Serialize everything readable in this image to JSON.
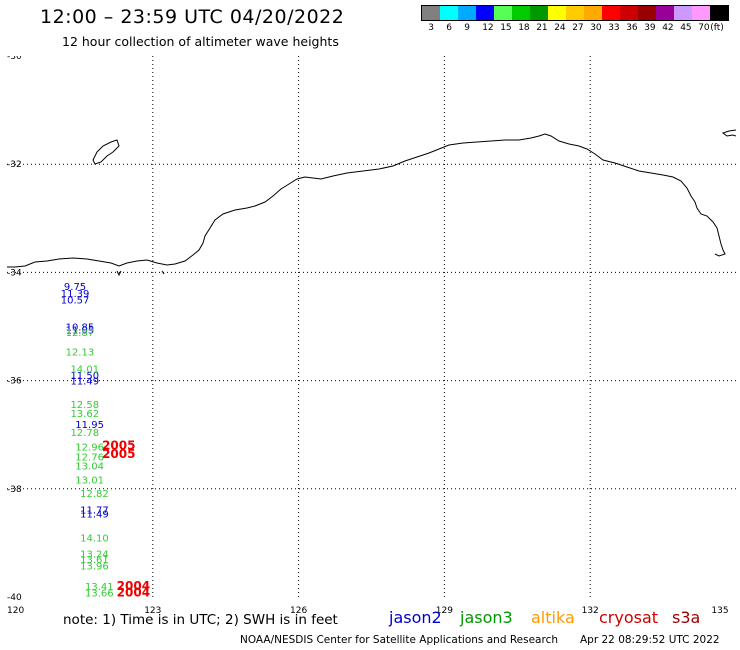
{
  "header": {
    "title": "12:00 – 23:59 UTC 04/20/2022",
    "subtitle": "12 hour collection of altimeter wave heights"
  },
  "color_scale": {
    "colors": [
      "#808080",
      "#00ffff",
      "#00aaff",
      "#0000ff",
      "#55ff55",
      "#00cc00",
      "#009900",
      "#ffff00",
      "#ffcc00",
      "#ffaa00",
      "#ff0000",
      "#cc0000",
      "#990000",
      "#990099",
      "#cc99ff",
      "#ff99ff",
      "#000000"
    ],
    "labels": [
      "3",
      "6",
      "9",
      "12",
      "15",
      "18",
      "21",
      "24",
      "27",
      "30",
      "33",
      "36",
      "39",
      "42",
      "45",
      "70",
      "(ft)"
    ]
  },
  "chart_data": {
    "type": "scatter",
    "title": "12 hour collection of altimeter wave heights",
    "xlim": [
      120,
      135
    ],
    "ylim": [
      -40,
      -30
    ],
    "x_ticks": [
      "120",
      "123",
      "126",
      "129",
      "132",
      "135"
    ],
    "y_ticks": [
      "-30",
      "-32",
      "-34",
      "-36",
      "-38",
      "-40"
    ],
    "grid": true,
    "series": [
      {
        "name": "jason2",
        "color": "#0000cc",
        "points": [
          {
            "x": 121.4,
            "y": -34.25,
            "label": "9.75"
          },
          {
            "x": 121.4,
            "y": -34.38,
            "label": "11.39"
          },
          {
            "x": 121.4,
            "y": -34.5,
            "label": "10.57"
          },
          {
            "x": 121.5,
            "y": -35.0,
            "label": "10.85"
          },
          {
            "x": 121.5,
            "y": -35.06,
            "label": "11.05"
          },
          {
            "x": 121.6,
            "y": -35.9,
            "label": "11.50"
          },
          {
            "x": 121.6,
            "y": -36.0,
            "label": "11.49"
          },
          {
            "x": 121.7,
            "y": -36.8,
            "label": "11.95"
          },
          {
            "x": 121.8,
            "y": -38.38,
            "label": "11.77"
          },
          {
            "x": 121.8,
            "y": -38.46,
            "label": "11.49"
          }
        ]
      },
      {
        "name": "jason3",
        "color": "#33cc33",
        "points": [
          {
            "x": 121.5,
            "y": -35.1,
            "label": "12.87"
          },
          {
            "x": 121.5,
            "y": -35.46,
            "label": "12.13"
          },
          {
            "x": 121.6,
            "y": -35.78,
            "label": "14.01"
          },
          {
            "x": 121.6,
            "y": -36.43,
            "label": "12.58"
          },
          {
            "x": 121.6,
            "y": -36.6,
            "label": "13.62"
          },
          {
            "x": 121.6,
            "y": -36.95,
            "label": "12.78"
          },
          {
            "x": 121.7,
            "y": -37.22,
            "label": "12.96"
          },
          {
            "x": 121.7,
            "y": -37.4,
            "label": "12.76"
          },
          {
            "x": 121.7,
            "y": -37.57,
            "label": "13.04"
          },
          {
            "x": 121.7,
            "y": -37.83,
            "label": "13.01"
          },
          {
            "x": 121.8,
            "y": -38.08,
            "label": "12.82"
          },
          {
            "x": 121.8,
            "y": -38.9,
            "label": "14.10"
          },
          {
            "x": 121.8,
            "y": -39.2,
            "label": "13.24"
          },
          {
            "x": 121.8,
            "y": -39.3,
            "label": "13.61"
          },
          {
            "x": 121.8,
            "y": -39.42,
            "label": "13.96"
          },
          {
            "x": 121.9,
            "y": -39.8,
            "label": "13.41"
          },
          {
            "x": 121.9,
            "y": -39.92,
            "label": "13.66"
          }
        ]
      },
      {
        "name": "cryosat",
        "color": "#ee0000",
        "points": [
          {
            "x": 122.3,
            "y": -37.2,
            "label": "2005"
          },
          {
            "x": 122.3,
            "y": -37.36,
            "label": "2005"
          },
          {
            "x": 122.6,
            "y": -39.8,
            "label": "2004"
          },
          {
            "x": 122.6,
            "y": -39.92,
            "label": "2004"
          }
        ]
      }
    ]
  },
  "legend": {
    "note": "note:  1) Time is in UTC;  2) SWH is in feet",
    "satellites": [
      {
        "name": "jason2",
        "color": "#0000cc"
      },
      {
        "name": "jason3",
        "color": "#009900"
      },
      {
        "name": "altika",
        "color": "#ff9900"
      },
      {
        "name": "cryosat",
        "color": "#cc0000"
      },
      {
        "name": "s3a",
        "color": "#990000"
      }
    ]
  },
  "footer": {
    "credit": "NOAA/NESDIS Center for Satellite Applications and Research",
    "timestamp": "Apr 22 08:29:52 UTC 2022"
  }
}
